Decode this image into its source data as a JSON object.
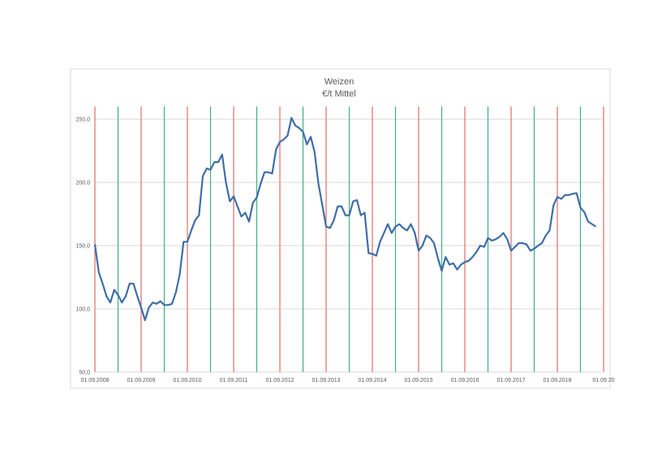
{
  "chart_data": {
    "type": "line",
    "title": "Weizen",
    "subtitle": "€/t Mittel",
    "xlabel": "",
    "ylabel": "",
    "ylim": [
      50,
      260
    ],
    "yticks": [
      "50,0",
      "100,0",
      "150,0",
      "200,0",
      "250,0"
    ],
    "ytick_values": [
      50,
      100,
      150,
      200,
      250
    ],
    "xticks": [
      "01.09.2008",
      "01.09.2009",
      "01.09.2010",
      "01.09.2011",
      "01.09.2012",
      "01.09.2013",
      "01.09.2014",
      "01.09.2015",
      "01.09.2016",
      "01.09.2017",
      "01.09.2018",
      "01.09.20"
    ],
    "xtick_dates": [
      "2008-09",
      "2009-09",
      "2010-09",
      "2011-09",
      "2012-09",
      "2013-09",
      "2014-09",
      "2015-09",
      "2016-09",
      "2017-09",
      "2018-09",
      "2019-09"
    ],
    "grid": "horizontal",
    "legend": "none",
    "colors": {
      "series": "#3f6ea6",
      "september_lines": "#e06c6c",
      "march_lines": "#3fae84",
      "grid": "#d9d9d9",
      "text": "#595959"
    },
    "vertical_markers": {
      "red": [
        "2008-09",
        "2009-09",
        "2010-09",
        "2011-09",
        "2012-09",
        "2013-09",
        "2014-09",
        "2015-09",
        "2016-09",
        "2017-09",
        "2018-09",
        "2019-09"
      ],
      "green": [
        "2009-03",
        "2010-03",
        "2011-03",
        "2012-03",
        "2013-03",
        "2014-03",
        "2015-03",
        "2016-03",
        "2017-03",
        "2018-03",
        "2019-03"
      ]
    },
    "series": [
      {
        "x": [
          "2008-09",
          "2008-10",
          "2008-11",
          "2008-12",
          "2009-01",
          "2009-02",
          "2009-03",
          "2009-04",
          "2009-05",
          "2009-06",
          "2009-07",
          "2009-08",
          "2009-09",
          "2009-10",
          "2009-11",
          "2009-12",
          "2010-01",
          "2010-02",
          "2010-03",
          "2010-04",
          "2010-05",
          "2010-06",
          "2010-07",
          "2010-08",
          "2010-09",
          "2010-10",
          "2010-11",
          "2010-12",
          "2011-01",
          "2011-02",
          "2011-03",
          "2011-04",
          "2011-05",
          "2011-06",
          "2011-07",
          "2011-08",
          "2011-09",
          "2011-10",
          "2011-11",
          "2011-12",
          "2012-01",
          "2012-02",
          "2012-03",
          "2012-04",
          "2012-05",
          "2012-06",
          "2012-07",
          "2012-08",
          "2012-09",
          "2012-10",
          "2012-11",
          "2012-12",
          "2013-01",
          "2013-02",
          "2013-03",
          "2013-04",
          "2013-05",
          "2013-06",
          "2013-07",
          "2013-08",
          "2013-09",
          "2013-10",
          "2013-11",
          "2013-12",
          "2014-01",
          "2014-02",
          "2014-03",
          "2014-04",
          "2014-05",
          "2014-06",
          "2014-07",
          "2014-08",
          "2014-09",
          "2014-10",
          "2014-11",
          "2014-12",
          "2015-01",
          "2015-02",
          "2015-03",
          "2015-04",
          "2015-05",
          "2015-06",
          "2015-07",
          "2015-08",
          "2015-09",
          "2015-10",
          "2015-11",
          "2015-12",
          "2016-01",
          "2016-02",
          "2016-03",
          "2016-04",
          "2016-05",
          "2016-06",
          "2016-07",
          "2016-08",
          "2016-09",
          "2016-10",
          "2016-11",
          "2016-12",
          "2017-01",
          "2017-02",
          "2017-03",
          "2017-04",
          "2017-05",
          "2017-06",
          "2017-07",
          "2017-08",
          "2017-09",
          "2017-10",
          "2017-11",
          "2017-12",
          "2018-01",
          "2018-02",
          "2018-03",
          "2018-04",
          "2018-05",
          "2018-06",
          "2018-07",
          "2018-08",
          "2018-09",
          "2018-10",
          "2018-11",
          "2018-12",
          "2019-01",
          "2019-02",
          "2019-03",
          "2019-04",
          "2019-05",
          "2019-06",
          "2019-07"
        ],
        "y": [
          151,
          129,
          120,
          110,
          105,
          115,
          111,
          105,
          110,
          120,
          120,
          110,
          101,
          91,
          101,
          105,
          104,
          106,
          103,
          103,
          104,
          113,
          127,
          153,
          153,
          162,
          170,
          174,
          205,
          211,
          210,
          216,
          216,
          222,
          200,
          185,
          189,
          181,
          173,
          176,
          169,
          184,
          188,
          199,
          208,
          208,
          207,
          226,
          232,
          234,
          237,
          251,
          245,
          243,
          240,
          230,
          236,
          224,
          199,
          182,
          165,
          164,
          170,
          181,
          181,
          174,
          174,
          185,
          186,
          174,
          176,
          144,
          143.5,
          142,
          153,
          160,
          167,
          160,
          165,
          167,
          164,
          162,
          167,
          160,
          146,
          150,
          158,
          156,
          152,
          140,
          130,
          141,
          135,
          136,
          131,
          135,
          137,
          138,
          141,
          145,
          150,
          149,
          156,
          154,
          155,
          157,
          160,
          155,
          146,
          149,
          152,
          152,
          151,
          146,
          147.5,
          150,
          152,
          158,
          162,
          182,
          188.5,
          187,
          190,
          190,
          191,
          191.5,
          180,
          176.5,
          169,
          167,
          165
        ]
      }
    ]
  }
}
